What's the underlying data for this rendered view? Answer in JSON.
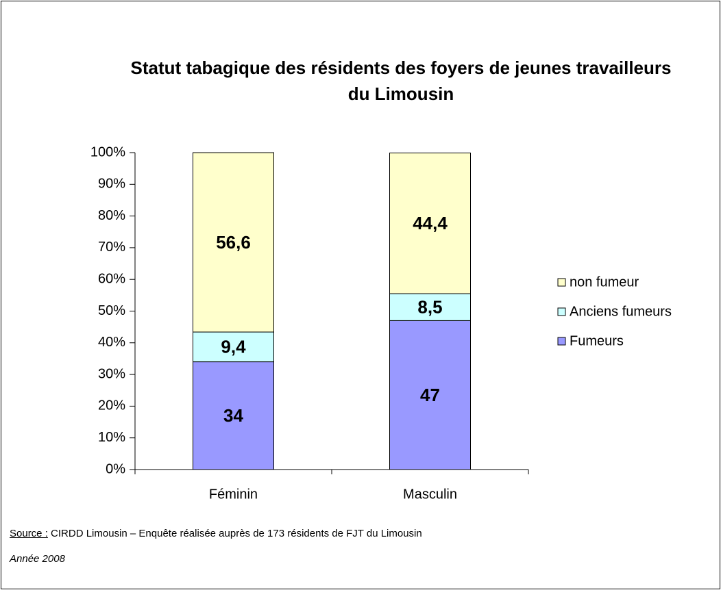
{
  "chart_data": {
    "type": "stacked_bar",
    "title": "Statut tabagique des résidents des foyers de jeunes travailleurs du Limousin",
    "categories": [
      "Féminin",
      "Masculin"
    ],
    "series": [
      {
        "name": "Fumeurs",
        "color": "#9999ff",
        "values": [
          34,
          47
        ],
        "value_labels": [
          "34",
          "47"
        ]
      },
      {
        "name": "Anciens fumeurs",
        "color": "#ccffff",
        "values": [
          9.4,
          8.5
        ],
        "value_labels": [
          "9,4",
          "8,5"
        ]
      },
      {
        "name": "non fumeur",
        "color": "#ffffcc",
        "values": [
          56.6,
          44.4
        ],
        "value_labels": [
          "56,6",
          "44,4"
        ]
      }
    ],
    "ylim": [
      0,
      100
    ],
    "yticks": [
      {
        "value": 0,
        "label": "0%"
      },
      {
        "value": 10,
        "label": "10%"
      },
      {
        "value": 20,
        "label": "20%"
      },
      {
        "value": 30,
        "label": "30%"
      },
      {
        "value": 40,
        "label": "40%"
      },
      {
        "value": 50,
        "label": "50%"
      },
      {
        "value": 60,
        "label": "60%"
      },
      {
        "value": 70,
        "label": "70%"
      },
      {
        "value": 80,
        "label": "80%"
      },
      {
        "value": 90,
        "label": "90%"
      },
      {
        "value": 100,
        "label": "100%"
      }
    ],
    "grid": false,
    "legend": "right"
  },
  "footer": {
    "source_label": "Source :",
    "source_text": "CIRDD Limousin – Enquête réalisée auprès de 173 résidents de FJT du Limousin",
    "year": "Année 2008"
  }
}
